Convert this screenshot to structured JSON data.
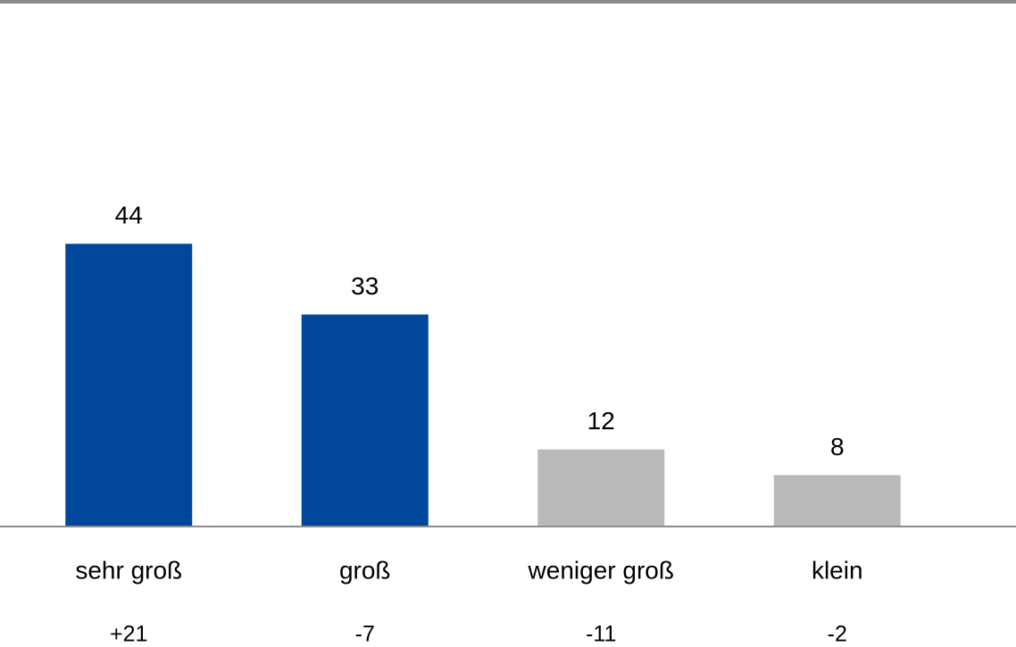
{
  "chart_data": {
    "type": "bar",
    "categories": [
      "sehr groß",
      "groß",
      "weniger groß",
      "klein"
    ],
    "values": [
      44,
      33,
      12,
      8
    ],
    "colors": [
      "#00469b",
      "#00469b",
      "#b9b9b9",
      "#b9b9b9"
    ],
    "annotations": [
      "+21",
      "-7",
      "-11",
      "-2"
    ]
  }
}
